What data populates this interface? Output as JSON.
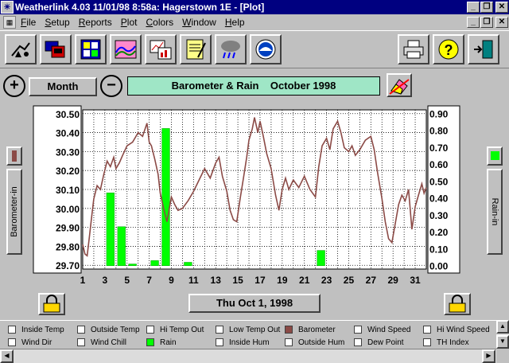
{
  "window": {
    "title": "Weatherlink 4.03  11/01/98   8:58a: Hagerstown 1E - [Plot]",
    "minimize": "_",
    "restore": "❐",
    "close": "✕"
  },
  "menu": [
    "File",
    "Setup",
    "Reports",
    "Plot",
    "Colors",
    "Window",
    "Help"
  ],
  "toolbar": {
    "buttons": [
      "station-icon",
      "computer-icon",
      "bulletin-icon",
      "spectrum-icon",
      "report-chart-icon",
      "notepad-icon",
      "rain-cloud-icon",
      "noaa-icon",
      "printer-icon",
      "help-icon",
      "exit-door-icon"
    ]
  },
  "controls": {
    "zoom_in": "+",
    "period": "Month",
    "zoom_out": "−",
    "chart_title": "Barometer & Rain    October 1998",
    "date": "Thu Oct 1, 1998",
    "left_axis_label": "Barometer-in",
    "right_axis_label": "Rain-in"
  },
  "colors": {
    "barometer": "#8b4a46",
    "rain": "#00ff00",
    "title_bg": "#9fe6c6",
    "window_title_bg": "#000080"
  },
  "chart_data": {
    "type": "line",
    "title": "Barometer & Rain    October 1998",
    "xlabel": "",
    "ylabel": "Barometer-in",
    "y2label": "Rain-in",
    "x_ticks": [
      "1",
      "3",
      "5",
      "7",
      "9",
      "11",
      "13",
      "15",
      "17",
      "19",
      "21",
      "23",
      "25",
      "27",
      "29",
      "31"
    ],
    "xlim": [
      1,
      32
    ],
    "ylim": [
      29.68,
      30.52
    ],
    "y_ticks": [
      "30.50",
      "30.40",
      "30.30",
      "30.20",
      "30.10",
      "30.00",
      "29.90",
      "29.80",
      "29.70"
    ],
    "y2lim": [
      -0.02,
      0.92
    ],
    "y2_ticks": [
      "0.90",
      "0.80",
      "0.70",
      "0.60",
      "0.50",
      "0.40",
      "0.30",
      "0.20",
      "0.10",
      "0.00"
    ],
    "grid": true,
    "series": [
      {
        "name": "Barometer",
        "axis": "left",
        "points": [
          [
            1.0,
            29.81
          ],
          [
            1.2,
            29.76
          ],
          [
            1.4,
            29.75
          ],
          [
            1.6,
            29.85
          ],
          [
            1.8,
            29.95
          ],
          [
            2.0,
            30.05
          ],
          [
            2.3,
            30.12
          ],
          [
            2.6,
            30.1
          ],
          [
            2.9,
            30.18
          ],
          [
            3.2,
            30.25
          ],
          [
            3.5,
            30.22
          ],
          [
            3.8,
            30.27
          ],
          [
            4.0,
            30.21
          ],
          [
            4.3,
            30.24
          ],
          [
            4.6,
            30.28
          ],
          [
            5.0,
            30.33
          ],
          [
            5.5,
            30.35
          ],
          [
            6.0,
            30.4
          ],
          [
            6.4,
            30.38
          ],
          [
            6.8,
            30.45
          ],
          [
            7.0,
            30.35
          ],
          [
            7.2,
            30.33
          ],
          [
            7.5,
            30.26
          ],
          [
            7.8,
            30.18
          ],
          [
            8.0,
            30.08
          ],
          [
            8.3,
            30.0
          ],
          [
            8.6,
            29.93
          ],
          [
            9.0,
            30.06
          ],
          [
            9.3,
            30.02
          ],
          [
            9.6,
            29.99
          ],
          [
            10.0,
            30.0
          ],
          [
            10.5,
            30.04
          ],
          [
            11.0,
            30.09
          ],
          [
            11.5,
            30.15
          ],
          [
            12.0,
            30.21
          ],
          [
            12.5,
            30.16
          ],
          [
            13.0,
            30.24
          ],
          [
            13.3,
            30.27
          ],
          [
            13.6,
            30.17
          ],
          [
            14.0,
            30.09
          ],
          [
            14.3,
            29.99
          ],
          [
            14.6,
            29.94
          ],
          [
            14.9,
            29.93
          ],
          [
            15.2,
            30.05
          ],
          [
            15.5,
            30.16
          ],
          [
            15.8,
            30.27
          ],
          [
            16.0,
            30.36
          ],
          [
            16.3,
            30.42
          ],
          [
            16.5,
            30.48
          ],
          [
            16.8,
            30.4
          ],
          [
            17.0,
            30.46
          ],
          [
            17.3,
            30.38
          ],
          [
            17.6,
            30.29
          ],
          [
            18.0,
            30.21
          ],
          [
            18.4,
            30.07
          ],
          [
            18.7,
            29.99
          ],
          [
            19.0,
            30.1
          ],
          [
            19.3,
            30.16
          ],
          [
            19.6,
            30.1
          ],
          [
            20.0,
            30.15
          ],
          [
            20.5,
            30.11
          ],
          [
            21.0,
            30.17
          ],
          [
            21.5,
            30.1
          ],
          [
            22.0,
            30.06
          ],
          [
            22.3,
            30.22
          ],
          [
            22.6,
            30.33
          ],
          [
            23.0,
            30.37
          ],
          [
            23.3,
            30.31
          ],
          [
            23.6,
            30.42
          ],
          [
            24.0,
            30.46
          ],
          [
            24.3,
            30.4
          ],
          [
            24.6,
            30.32
          ],
          [
            25.0,
            30.3
          ],
          [
            25.3,
            30.33
          ],
          [
            25.6,
            30.28
          ],
          [
            26.0,
            30.31
          ],
          [
            26.5,
            30.36
          ],
          [
            27.0,
            30.38
          ],
          [
            27.3,
            30.31
          ],
          [
            27.6,
            30.19
          ],
          [
            28.0,
            30.05
          ],
          [
            28.3,
            29.93
          ],
          [
            28.6,
            29.84
          ],
          [
            28.9,
            29.82
          ],
          [
            29.2,
            29.92
          ],
          [
            29.5,
            30.02
          ],
          [
            29.8,
            30.07
          ],
          [
            30.1,
            30.04
          ],
          [
            30.4,
            30.1
          ],
          [
            30.7,
            29.89
          ],
          [
            31.0,
            30.01
          ],
          [
            31.3,
            30.07
          ],
          [
            31.6,
            30.13
          ],
          [
            31.8,
            30.08
          ],
          [
            32.0,
            30.11
          ]
        ]
      },
      {
        "name": "Rain",
        "axis": "right",
        "bars": [
          [
            3.5,
            0.43
          ],
          [
            4.5,
            0.23
          ],
          [
            5.5,
            0.01
          ],
          [
            7.5,
            0.03
          ],
          [
            8.5,
            0.81
          ],
          [
            10.5,
            0.02
          ],
          [
            22.5,
            0.09
          ]
        ]
      }
    ]
  },
  "legend": [
    {
      "label": "Inside Temp",
      "checked": false
    },
    {
      "label": "Outside Temp",
      "checked": false
    },
    {
      "label": "Hi Temp Out",
      "checked": false
    },
    {
      "label": "Low Temp Out",
      "checked": false
    },
    {
      "label": "Barometer",
      "checked": true,
      "color": "#8b4a46"
    },
    {
      "label": "Wind Speed",
      "checked": false
    },
    {
      "label": "Hi Wind Speed",
      "checked": false
    },
    {
      "label": "Wind Dir",
      "checked": false
    },
    {
      "label": "Wind Chill",
      "checked": false
    },
    {
      "label": "Rain",
      "checked": true,
      "color": "#00ff00"
    },
    {
      "label": "Inside Hum",
      "checked": false
    },
    {
      "label": "Outside Hum",
      "checked": false
    },
    {
      "label": "Dew Point",
      "checked": false
    },
    {
      "label": "TH Index",
      "checked": false
    }
  ]
}
